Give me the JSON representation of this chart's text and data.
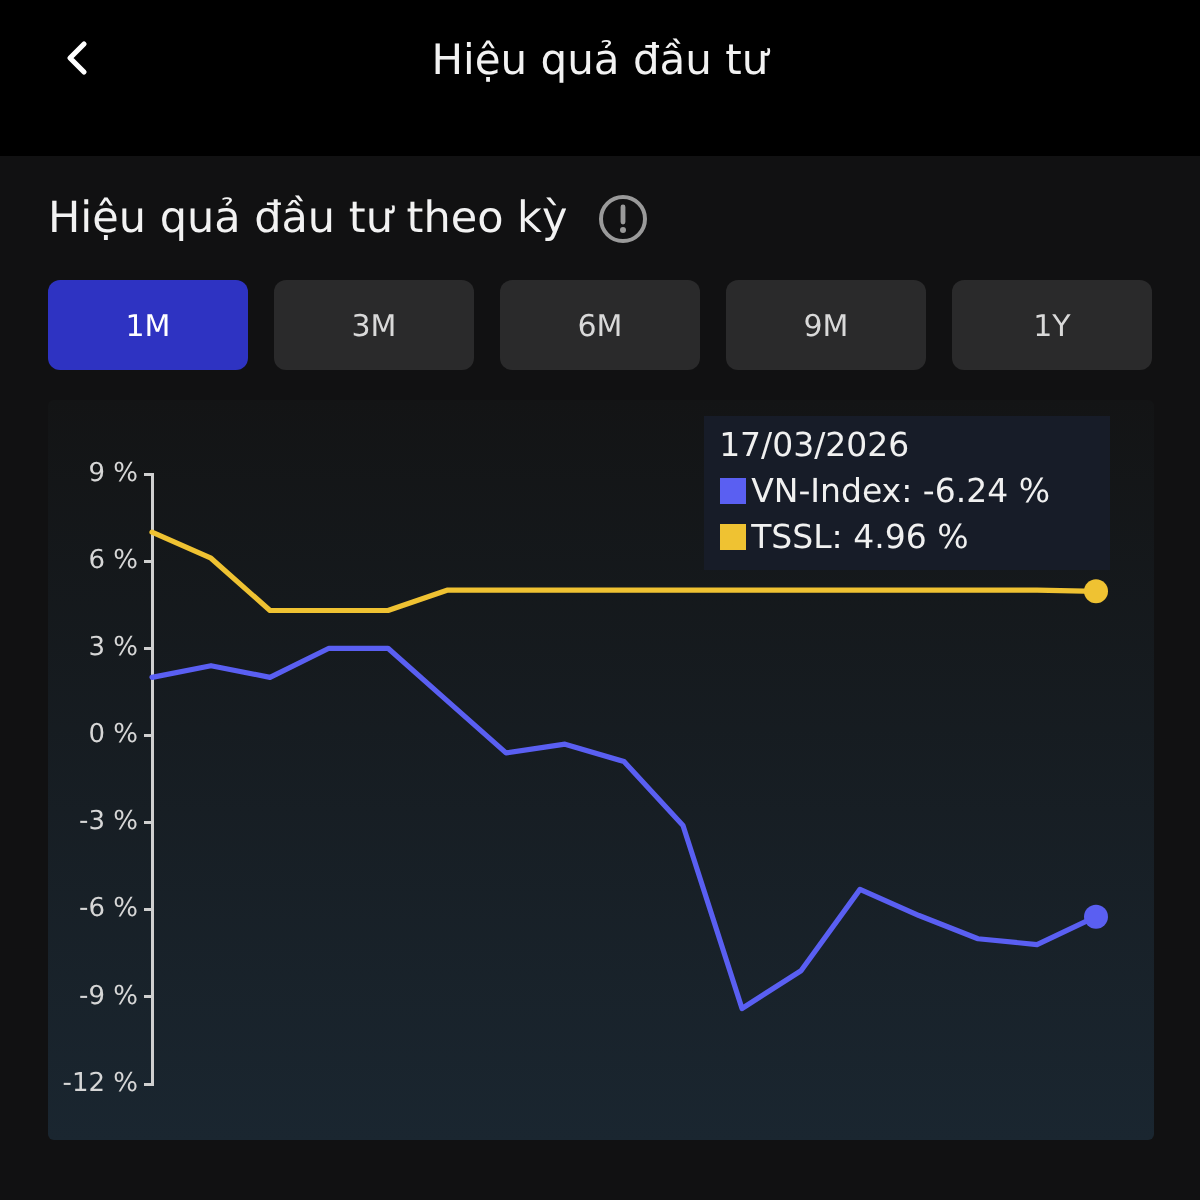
{
  "chart_data": {
    "type": "line",
    "title": "Hiệu quả đầu tư",
    "subtitle": "Hiệu quả đầu tư theo kỳ",
    "annotations": [
      "1M",
      "3M",
      "6M",
      "9M",
      "1Y",
      ": -6.24 %",
      ": 4.96 %"
    ],
    "legend_title": "17/03/2026",
    "legend": "top right",
    "grid": false,
    "categories": [
      null,
      null,
      null,
      null,
      null,
      null,
      null,
      null,
      null,
      null,
      null,
      null,
      null,
      null,
      null,
      null,
      null
    ],
    "series": [
      {
        "name": "VN-Index",
        "color": "#5a5ff2",
        "values": [
          2.0,
          2.4,
          2.0,
          3.0,
          3.0,
          1.2,
          -0.6,
          -0.3,
          -0.9,
          -3.1,
          -9.4,
          -8.1,
          -5.3,
          -6.2,
          -7.0,
          -7.2,
          -6.24
        ]
      },
      {
        "name": "TSSL",
        "color": "#efc232",
        "values": [
          7.0,
          6.1,
          4.3,
          4.3,
          4.3,
          5.0,
          5.0,
          5.0,
          5.0,
          5.0,
          5.0,
          5.0,
          5.0,
          5.0,
          5.0,
          5.0,
          4.96
        ]
      }
    ],
    "ylim": [
      -12,
      9
    ],
    "yticks": [
      {
        "value": 9,
        "label": "9 %"
      },
      {
        "value": 6,
        "label": "6 %"
      },
      {
        "value": 3,
        "label": "3 %"
      },
      {
        "value": 0,
        "label": "0 %"
      },
      {
        "value": -3,
        "label": "-3 %"
      },
      {
        "value": -6,
        "label": "-6 %"
      },
      {
        "value": -9,
        "label": "-9 %"
      },
      {
        "value": -12,
        "label": "-12 %"
      }
    ]
  }
}
